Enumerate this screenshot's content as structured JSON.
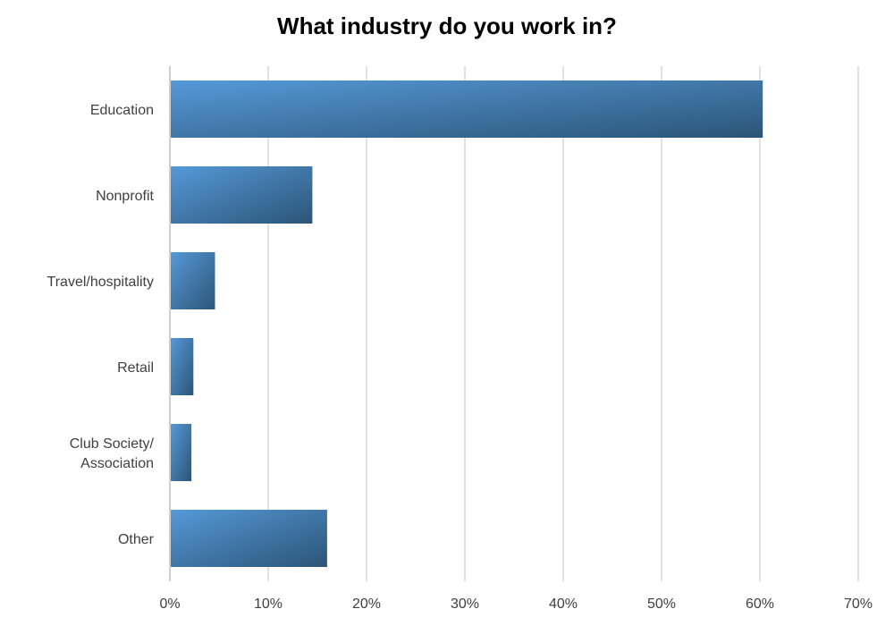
{
  "chart_data": {
    "type": "bar",
    "orientation": "horizontal",
    "title": "What industry do you work in?",
    "xlabel": "",
    "ylabel": "",
    "categories": [
      [
        "Education"
      ],
      [
        "Nonprofit"
      ],
      [
        "Travel/hospitality"
      ],
      [
        "Retail"
      ],
      [
        "Club Society/",
        "Association"
      ],
      [
        "Other"
      ]
    ],
    "values": [
      60.2,
      14.4,
      4.5,
      2.3,
      2.1,
      15.9
    ],
    "xlim": [
      0,
      70
    ],
    "x_ticks": [
      0,
      10,
      20,
      30,
      40,
      50,
      60,
      70
    ],
    "x_tick_labels": [
      "0%",
      "10%",
      "20%",
      "30%",
      "40%",
      "50%",
      "60%",
      "70%"
    ],
    "grid": "vertical",
    "legend": "none",
    "colors": {
      "bar_light": "#5599d8",
      "bar_dark": "#2c5577",
      "grid": "#d9d9d9",
      "axis": "#bfbfbf",
      "text": "#404040"
    }
  }
}
